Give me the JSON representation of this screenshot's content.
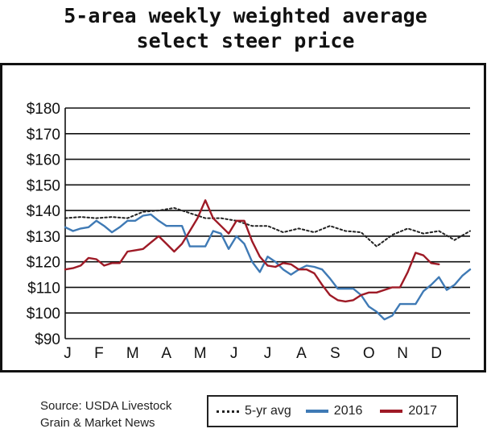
{
  "title_line1": "5-area weekly weighted average",
  "title_line2": "select steer price",
  "source_line1": "Source: USDA Livestock",
  "source_line2": "Grain & Market News",
  "legend": {
    "avg": "5-yr avg",
    "y2016": "2016",
    "y2017": "2017"
  },
  "colors": {
    "avg": "#222222",
    "y2016": "#3f7ab5",
    "y2017": "#9e1a26"
  },
  "chart_data": {
    "type": "line",
    "title": "5-area weekly weighted average select steer price",
    "x_unit": "week",
    "x_ticks": [
      "J",
      "F",
      "M",
      "A",
      "M",
      "J",
      "J",
      "A",
      "S",
      "O",
      "N",
      "D"
    ],
    "y_ticks": [
      "$180",
      "$170",
      "$160",
      "$150",
      "$140",
      "$130",
      "$120",
      "$110",
      "$100",
      "$90"
    ],
    "ylim": [
      90,
      180
    ],
    "grid": "horizontal",
    "legend_position": "bottom-right",
    "series": [
      {
        "name": "5-yr avg",
        "style": "dotted",
        "x": [
          1,
          3,
          5,
          7,
          9,
          11,
          13,
          15,
          17,
          19,
          21,
          23,
          25,
          27,
          29,
          31,
          33,
          35,
          37,
          39,
          41,
          43,
          45,
          47,
          49,
          51,
          53
        ],
        "y": [
          137,
          137.5,
          137,
          137.5,
          137,
          139.5,
          140,
          141,
          139,
          137,
          137,
          136,
          134,
          134,
          131.5,
          133,
          131.5,
          134,
          132,
          131.5,
          126,
          130.5,
          133,
          131,
          132,
          128.5,
          132
        ]
      },
      {
        "name": "2016",
        "style": "solid",
        "x": [
          1,
          2,
          3,
          4,
          5,
          6,
          7,
          8,
          9,
          10,
          11,
          12,
          13,
          14,
          15,
          16,
          17,
          18,
          19,
          20,
          21,
          22,
          23,
          24,
          25,
          26,
          27,
          28,
          29,
          30,
          31,
          32,
          33,
          34,
          35,
          36,
          37,
          38,
          39,
          40,
          41,
          42,
          43,
          44,
          45,
          46,
          47,
          48,
          49,
          50,
          51,
          52,
          53
        ],
        "y": [
          133.5,
          132,
          133,
          133.5,
          136,
          134,
          131.5,
          133.5,
          136,
          136,
          138,
          138.5,
          136,
          134,
          134,
          134,
          126,
          126,
          126,
          132,
          131,
          125,
          130,
          127,
          120,
          116,
          122,
          120,
          117,
          115,
          117,
          118.5,
          118,
          117,
          113.5,
          109.5,
          109.5,
          109.5,
          107,
          102.5,
          100.5,
          97.5,
          99,
          103.5,
          103.5,
          103.5,
          108.5,
          111,
          114,
          109,
          111,
          114.5,
          117
        ]
      },
      {
        "name": "2017",
        "style": "solid",
        "x": [
          1,
          2,
          3,
          4,
          5,
          6,
          7,
          8,
          9,
          10,
          11,
          12,
          13,
          14,
          15,
          16,
          17,
          18,
          19,
          20,
          21,
          22,
          23,
          24,
          25,
          26,
          27,
          28,
          29,
          30,
          31,
          32,
          33,
          34,
          35,
          36,
          37,
          38,
          39,
          40,
          41,
          42,
          43,
          44,
          45,
          46,
          47,
          48,
          49
        ],
        "y": [
          117,
          117.5,
          118.5,
          121.5,
          121,
          118.5,
          119.5,
          119.5,
          124,
          124.5,
          125,
          127.5,
          130,
          127,
          124,
          127,
          132,
          137,
          144,
          137,
          134,
          131,
          136,
          136,
          128,
          122,
          118.5,
          118,
          119.5,
          119,
          117,
          117,
          115.5,
          111,
          107,
          105,
          104.5,
          105,
          107,
          108,
          108,
          109,
          110,
          110,
          116,
          123.5,
          122.5,
          119.5,
          119
        ]
      }
    ]
  }
}
